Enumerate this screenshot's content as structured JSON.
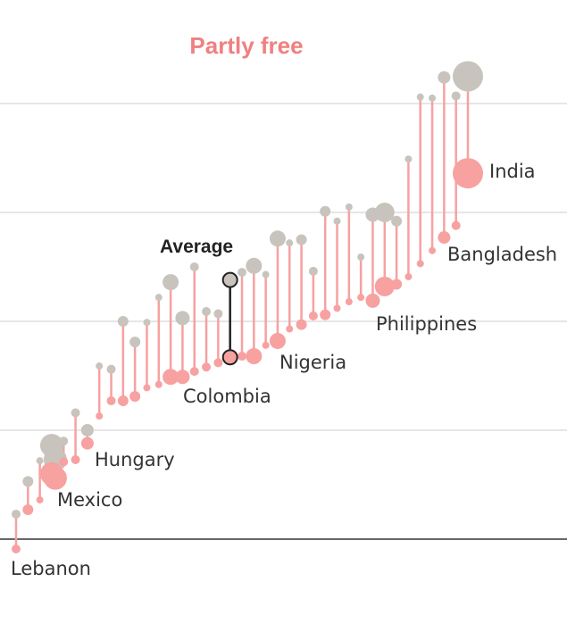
{
  "chart_data": {
    "type": "dumbbell",
    "title": "Partly free",
    "xlabel": "",
    "ylabel": "",
    "colors": {
      "title": "#f08080",
      "line": "#f7a1a1",
      "top_dot": "#c8c4bd",
      "bottom_dot": "#f7a1a1",
      "average": "#222222",
      "grid": "#dddddd",
      "baseline": "#333333"
    },
    "average": {
      "label": "Average",
      "x": 18,
      "top": 2.38,
      "bottom": 1.67
    },
    "labels": [
      "Lebanon",
      "Mexico",
      "Hungary",
      "Colombia",
      "Nigeria",
      "Philippines",
      "Bangladesh",
      "India"
    ],
    "series": [
      {
        "label": "Lebanon",
        "x": 0,
        "top": 0.23,
        "bottom": -0.09,
        "size": 5
      },
      {
        "label": "",
        "x": 1,
        "top": 0.53,
        "bottom": 0.27,
        "size": 6
      },
      {
        "label": "",
        "x": 2,
        "top": 0.72,
        "bottom": 0.36,
        "size": 4
      },
      {
        "label": "",
        "x": 3,
        "top": 0.86,
        "bottom": 0.6,
        "size": 13
      },
      {
        "label": "Mexico",
        "x": 3.3,
        "top": 0.73,
        "bottom": 0.56,
        "size": 13
      },
      {
        "label": "",
        "x": 4,
        "top": 0.9,
        "bottom": 0.71,
        "size": 5
      },
      {
        "label": "",
        "x": 5,
        "top": 1.16,
        "bottom": 0.73,
        "size": 5
      },
      {
        "label": "Hungary",
        "x": 6,
        "top": 1.0,
        "bottom": 0.88,
        "size": 7
      },
      {
        "label": "",
        "x": 7,
        "top": 1.59,
        "bottom": 1.13,
        "size": 4
      },
      {
        "label": "",
        "x": 8,
        "top": 1.56,
        "bottom": 1.27,
        "size": 5
      },
      {
        "label": "",
        "x": 9,
        "top": 2.0,
        "bottom": 1.27,
        "size": 6
      },
      {
        "label": "",
        "x": 10,
        "top": 1.81,
        "bottom": 1.31,
        "size": 6
      },
      {
        "label": "",
        "x": 11,
        "top": 1.99,
        "bottom": 1.39,
        "size": 4
      },
      {
        "label": "",
        "x": 12,
        "top": 2.22,
        "bottom": 1.42,
        "size": 4
      },
      {
        "label": "",
        "x": 13,
        "top": 2.36,
        "bottom": 1.49,
        "size": 9
      },
      {
        "label": "Colombia",
        "x": 14,
        "top": 2.03,
        "bottom": 1.49,
        "size": 8
      },
      {
        "label": "",
        "x": 15,
        "top": 2.5,
        "bottom": 1.54,
        "size": 5
      },
      {
        "label": "",
        "x": 16,
        "top": 2.09,
        "bottom": 1.58,
        "size": 5
      },
      {
        "label": "",
        "x": 17,
        "top": 2.07,
        "bottom": 1.62,
        "size": 5
      },
      {
        "label": "",
        "x": 19,
        "top": 2.45,
        "bottom": 1.68,
        "size": 5
      },
      {
        "label": "",
        "x": 20,
        "top": 2.51,
        "bottom": 1.68,
        "size": 9
      },
      {
        "label": "",
        "x": 21,
        "top": 2.43,
        "bottom": 1.78,
        "size": 4
      },
      {
        "label": "Nigeria",
        "x": 22,
        "top": 2.76,
        "bottom": 1.82,
        "size": 9
      },
      {
        "label": "",
        "x": 23,
        "top": 2.72,
        "bottom": 1.93,
        "size": 4
      },
      {
        "label": "",
        "x": 24,
        "top": 2.75,
        "bottom": 1.97,
        "size": 6
      },
      {
        "label": "",
        "x": 25,
        "top": 2.46,
        "bottom": 2.05,
        "size": 5
      },
      {
        "label": "",
        "x": 26,
        "top": 3.01,
        "bottom": 2.06,
        "size": 6
      },
      {
        "label": "",
        "x": 27,
        "top": 2.92,
        "bottom": 2.12,
        "size": 4
      },
      {
        "label": "",
        "x": 28,
        "top": 3.05,
        "bottom": 2.18,
        "size": 4
      },
      {
        "label": "",
        "x": 29,
        "top": 2.59,
        "bottom": 2.22,
        "size": 4
      },
      {
        "label": "",
        "x": 30,
        "top": 2.98,
        "bottom": 2.19,
        "size": 8
      },
      {
        "label": "Philippines",
        "x": 31,
        "top": 3.0,
        "bottom": 2.32,
        "size": 11
      },
      {
        "label": "",
        "x": 32,
        "top": 2.92,
        "bottom": 2.34,
        "size": 6
      },
      {
        "label": "",
        "x": 33,
        "top": 3.49,
        "bottom": 2.41,
        "size": 4
      },
      {
        "label": "",
        "x": 34,
        "top": 4.06,
        "bottom": 2.53,
        "size": 4
      },
      {
        "label": "",
        "x": 35,
        "top": 4.05,
        "bottom": 2.65,
        "size": 4
      },
      {
        "label": "Bangladesh",
        "x": 36,
        "top": 4.24,
        "bottom": 2.77,
        "size": 7
      },
      {
        "label": "",
        "x": 37,
        "top": 4.07,
        "bottom": 2.88,
        "size": 5
      },
      {
        "label": "India",
        "x": 38,
        "top": 4.25,
        "bottom": 3.36,
        "size": 17
      }
    ],
    "ylim": [
      -0.2,
      4.5
    ],
    "xlim": [
      -0.5,
      38.8
    ]
  }
}
